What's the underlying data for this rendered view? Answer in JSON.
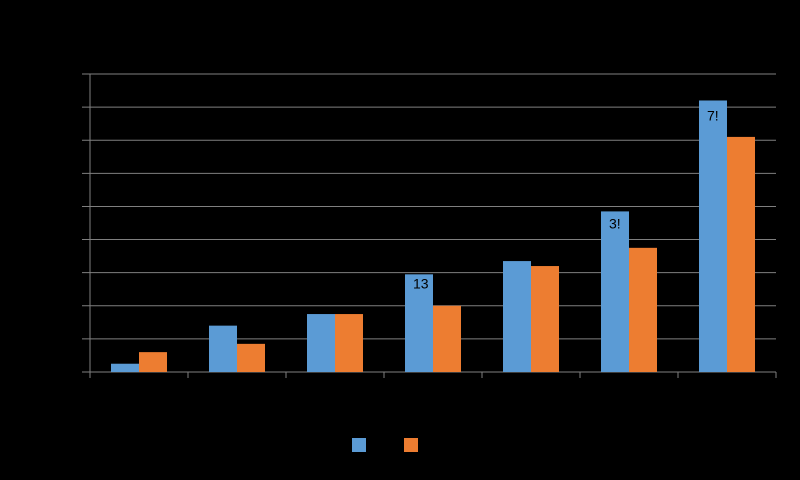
{
  "chart_data": {
    "type": "bar",
    "categories": [
      "",
      "",
      "",
      "",
      "",
      "",
      ""
    ],
    "series": [
      {
        "values": [
          2.5,
          14,
          17.5,
          29.5,
          33.5,
          48.5,
          82
        ],
        "color": "#5B9BD5"
      },
      {
        "values": [
          6,
          8.5,
          17.5,
          20,
          32,
          37.5,
          71
        ],
        "color": "#ED7D31"
      }
    ],
    "ylim": [
      0,
      90
    ],
    "grid": true,
    "title": "",
    "xlabel": "",
    "ylabel": "",
    "legend": {
      "placement": "bottom-center"
    },
    "data_labels": [
      "13",
      "3!",
      "7!"
    ]
  }
}
